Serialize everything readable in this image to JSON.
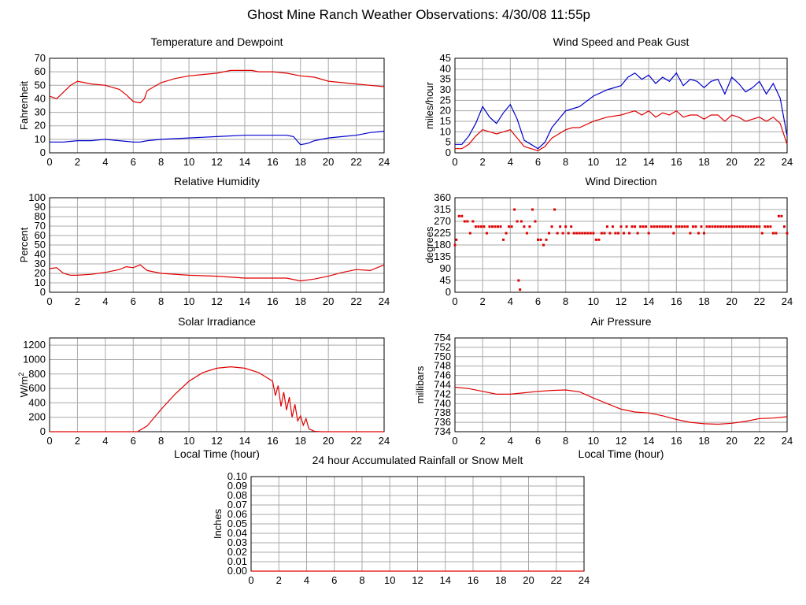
{
  "page_title": "Ghost Mine Ranch Weather Observations: 4/30/08 11:55p",
  "chart_data": [
    {
      "id": "temp",
      "type": "line",
      "title": "Temperature and Dewpoint",
      "ylabel": "Fahrenheit",
      "xlabel": "",
      "xlim": [
        0,
        24
      ],
      "ylim": [
        0,
        70
      ],
      "xticks": [
        0,
        2,
        4,
        6,
        8,
        10,
        12,
        14,
        16,
        18,
        20,
        22,
        24
      ],
      "yticks": [
        0,
        10,
        20,
        30,
        40,
        50,
        60,
        70
      ],
      "grid": true,
      "series": [
        {
          "color": "#e00000",
          "x": [
            0,
            0.5,
            1,
            1.5,
            2,
            3,
            4,
            5,
            5.5,
            6,
            6.5,
            6.8,
            7,
            8,
            9,
            10,
            11,
            12,
            13,
            14,
            14.5,
            15,
            16,
            17,
            18,
            19,
            20,
            21,
            22,
            23,
            24
          ],
          "y": [
            42,
            40,
            45,
            50,
            53,
            51,
            50,
            47,
            43,
            38,
            37,
            40,
            46,
            52,
            55,
            57,
            58,
            59,
            61,
            61,
            61,
            60,
            60,
            59,
            57,
            56,
            53,
            52,
            51,
            50,
            49
          ]
        },
        {
          "color": "#0000cc",
          "x": [
            0,
            1,
            2,
            3,
            4,
            5,
            6,
            6.5,
            7,
            8,
            10,
            12,
            14,
            16,
            17,
            17.5,
            18,
            18.5,
            19,
            20,
            21,
            22,
            23,
            24
          ],
          "y": [
            8,
            8,
            9,
            9,
            10,
            9,
            8,
            8,
            9,
            10,
            11,
            12,
            13,
            13,
            13,
            12,
            6,
            7,
            9,
            11,
            12,
            13,
            15,
            16
          ]
        }
      ]
    },
    {
      "id": "wind",
      "type": "line",
      "title": "Wind Speed and Peak Gust",
      "ylabel": "miles/hour",
      "xlabel": "",
      "xlim": [
        0,
        24
      ],
      "ylim": [
        0,
        45
      ],
      "xticks": [
        0,
        2,
        4,
        6,
        8,
        10,
        12,
        14,
        16,
        18,
        20,
        22,
        24
      ],
      "yticks": [
        0,
        5,
        10,
        15,
        20,
        25,
        30,
        35,
        40,
        45
      ],
      "grid": true,
      "series": [
        {
          "color": "#0000cc",
          "x": [
            0,
            0.5,
            1,
            1.5,
            2,
            2.5,
            3,
            3.5,
            4,
            4.5,
            5,
            5.5,
            6,
            6.5,
            7,
            7.5,
            8,
            8.5,
            9,
            10,
            11,
            12,
            12.5,
            13,
            13.5,
            14,
            14.5,
            15,
            15.5,
            16,
            16.5,
            17,
            17.5,
            18,
            18.5,
            19,
            19.5,
            20,
            20.5,
            21,
            21.5,
            22,
            22.5,
            23,
            23.5,
            24
          ],
          "y": [
            4,
            4,
            8,
            14,
            22,
            17,
            14,
            19,
            23,
            16,
            6,
            4,
            2,
            5,
            12,
            16,
            20,
            21,
            22,
            27,
            30,
            32,
            36,
            38,
            35,
            37,
            33,
            36,
            34,
            38,
            32,
            35,
            34,
            31,
            34,
            35,
            28,
            36,
            33,
            29,
            31,
            34,
            28,
            33,
            26,
            8
          ]
        },
        {
          "color": "#e00000",
          "x": [
            0,
            0.5,
            1,
            1.5,
            2,
            2.5,
            3,
            3.5,
            4,
            4.5,
            5,
            5.5,
            6,
            6.5,
            7,
            7.5,
            8,
            8.5,
            9,
            10,
            11,
            12,
            12.5,
            13,
            13.5,
            14,
            14.5,
            15,
            15.5,
            16,
            16.5,
            17,
            17.5,
            18,
            18.5,
            19,
            19.5,
            20,
            20.5,
            21,
            21.5,
            22,
            22.5,
            23,
            23.5,
            24
          ],
          "y": [
            2,
            2,
            4,
            8,
            11,
            10,
            9,
            10,
            11,
            7,
            3,
            2,
            1,
            3,
            7,
            9,
            11,
            12,
            12,
            15,
            17,
            18,
            19,
            20,
            18,
            20,
            17,
            19,
            18,
            20,
            17,
            18,
            18,
            16,
            18,
            18,
            15,
            18,
            17,
            15,
            16,
            17,
            15,
            17,
            14,
            4
          ]
        }
      ]
    },
    {
      "id": "rh",
      "type": "line",
      "title": "Relative Humidity",
      "ylabel": "Percent",
      "xlabel": "",
      "xlim": [
        0,
        24
      ],
      "ylim": [
        0,
        100
      ],
      "xticks": [
        0,
        2,
        4,
        6,
        8,
        10,
        12,
        14,
        16,
        18,
        20,
        22,
        24
      ],
      "yticks": [
        0,
        10,
        20,
        30,
        40,
        50,
        60,
        70,
        80,
        90,
        100
      ],
      "grid": true,
      "series": [
        {
          "color": "#e00000",
          "x": [
            0,
            0.5,
            1,
            1.5,
            2,
            3,
            4,
            5,
            5.5,
            6,
            6.5,
            7,
            8,
            10,
            12,
            14,
            16,
            17,
            18,
            19,
            20,
            21,
            22,
            23,
            24
          ],
          "y": [
            25,
            26,
            20,
            18,
            18,
            19,
            21,
            24,
            27,
            26,
            29,
            23,
            20,
            18,
            17,
            15,
            15,
            15,
            12,
            14,
            17,
            21,
            24,
            23,
            29
          ]
        }
      ]
    },
    {
      "id": "dir",
      "type": "scatter",
      "title": "Wind Direction",
      "ylabel": "degrees",
      "xlabel": "",
      "xlim": [
        0,
        24
      ],
      "ylim": [
        0,
        360
      ],
      "xticks": [
        0,
        2,
        4,
        6,
        8,
        10,
        12,
        14,
        16,
        18,
        20,
        22,
        24
      ],
      "yticks": [
        0,
        45,
        90,
        135,
        180,
        225,
        270,
        315,
        360
      ],
      "grid": true,
      "series": [
        {
          "color": "#e00000",
          "x": [
            0,
            0.1,
            0.3,
            0.5,
            0.7,
            0.9,
            1.1,
            1.3,
            1.5,
            1.7,
            1.9,
            2.1,
            2.3,
            2.5,
            2.7,
            2.9,
            3.1,
            3.3,
            3.5,
            3.7,
            3.9,
            4.1,
            4.3,
            4.5,
            4.6,
            4.7,
            4.8,
            5.0,
            5.2,
            5.4,
            5.6,
            5.8,
            6.0,
            6.2,
            6.4,
            6.6,
            6.8,
            7.0,
            7.2,
            7.4,
            7.6,
            7.8,
            8.0,
            8.2,
            8.4,
            8.6,
            8.8,
            9.0,
            9.2,
            9.4,
            9.6,
            9.8,
            10.0,
            10.2,
            10.4,
            10.6,
            10.8,
            11.0,
            11.2,
            11.4,
            11.6,
            11.8,
            12.0,
            12.2,
            12.4,
            12.6,
            12.8,
            13.0,
            13.2,
            13.4,
            13.6,
            13.8,
            14.0,
            14.2,
            14.4,
            14.6,
            14.8,
            15.0,
            15.2,
            15.4,
            15.6,
            15.8,
            16.0,
            16.2,
            16.4,
            16.6,
            16.8,
            17.0,
            17.2,
            17.4,
            17.6,
            17.8,
            18.0,
            18.2,
            18.4,
            18.6,
            18.8,
            19.0,
            19.2,
            19.4,
            19.6,
            19.8,
            20.0,
            20.2,
            20.4,
            20.6,
            20.8,
            21.0,
            21.2,
            21.4,
            21.6,
            21.8,
            22.0,
            22.2,
            22.4,
            22.6,
            22.8,
            23.0,
            23.2,
            23.4,
            23.6,
            23.8,
            24.0
          ],
          "y": [
            180,
            200,
            290,
            290,
            270,
            270,
            225,
            270,
            250,
            250,
            250,
            250,
            225,
            250,
            250,
            250,
            250,
            250,
            200,
            225,
            250,
            250,
            315,
            270,
            45,
            10,
            270,
            250,
            225,
            250,
            315,
            270,
            200,
            200,
            180,
            200,
            225,
            250,
            315,
            225,
            250,
            225,
            250,
            225,
            250,
            225,
            225,
            225,
            225,
            225,
            225,
            225,
            225,
            200,
            200,
            225,
            225,
            250,
            225,
            250,
            225,
            225,
            250,
            225,
            250,
            225,
            250,
            250,
            225,
            250,
            250,
            250,
            225,
            250,
            250,
            250,
            250,
            250,
            250,
            250,
            250,
            225,
            250,
            250,
            250,
            250,
            250,
            225,
            250,
            250,
            225,
            250,
            225,
            250,
            250,
            250,
            250,
            250,
            250,
            250,
            250,
            250,
            250,
            250,
            250,
            250,
            250,
            250,
            250,
            250,
            250,
            250,
            250,
            225,
            250,
            250,
            250,
            225,
            225,
            290,
            290,
            250,
            225
          ]
        }
      ]
    },
    {
      "id": "solar",
      "type": "line",
      "title": "Solar Irradiance",
      "ylabel": "W/m2",
      "xlabel": "Local Time (hour)",
      "xlim": [
        0,
        24
      ],
      "ylim": [
        0,
        1300
      ],
      "xticks": [
        0,
        2,
        4,
        6,
        8,
        10,
        12,
        14,
        16,
        18,
        20,
        22,
        24
      ],
      "yticks": [
        0,
        200,
        400,
        600,
        800,
        1000,
        1200
      ],
      "grid": true,
      "series": [
        {
          "color": "#e00000",
          "x": [
            0,
            6.3,
            7,
            8,
            9,
            10,
            11,
            12,
            13,
            14,
            15,
            15.5,
            16,
            16.2,
            16.4,
            16.6,
            16.8,
            17,
            17.2,
            17.4,
            17.6,
            17.8,
            18,
            18.2,
            18.4,
            18.6,
            19,
            19.5,
            20,
            24
          ],
          "y": [
            0,
            0,
            80,
            310,
            520,
            700,
            820,
            880,
            900,
            880,
            820,
            760,
            700,
            500,
            640,
            350,
            550,
            300,
            480,
            200,
            380,
            150,
            220,
            90,
            180,
            40,
            5,
            0,
            0,
            0
          ]
        }
      ]
    },
    {
      "id": "pressure",
      "type": "line",
      "title": "Air Pressure",
      "ylabel": "millibars",
      "xlabel": "Local Time (hour)",
      "xlim": [
        0,
        24
      ],
      "ylim": [
        734,
        754
      ],
      "xticks": [
        0,
        2,
        4,
        6,
        8,
        10,
        12,
        14,
        16,
        18,
        20,
        22,
        24
      ],
      "yticks": [
        734,
        736,
        738,
        740,
        742,
        744,
        746,
        748,
        750,
        752,
        754
      ],
      "grid": true,
      "series": [
        {
          "color": "#e00000",
          "x": [
            0,
            1,
            2,
            3,
            4,
            5,
            6,
            7,
            8,
            9,
            10,
            11,
            12,
            13,
            14,
            15,
            16,
            17,
            18,
            19,
            20,
            21,
            22,
            23,
            24
          ],
          "y": [
            743.5,
            743.2,
            742.6,
            742.0,
            742.0,
            742.3,
            742.6,
            742.8,
            742.9,
            742.5,
            741.2,
            740.0,
            738.8,
            738.2,
            738.0,
            737.4,
            736.6,
            736.0,
            735.7,
            735.6,
            735.8,
            736.2,
            736.8,
            736.9,
            737.2
          ]
        }
      ]
    },
    {
      "id": "rain",
      "type": "line",
      "title": "24 hour Accumulated Rainfall or Snow Melt",
      "ylabel": "Inches",
      "xlabel": "",
      "xlim": [
        0,
        24
      ],
      "ylim": [
        0,
        0.1
      ],
      "xticks": [
        0,
        2,
        4,
        6,
        8,
        10,
        12,
        14,
        16,
        18,
        20,
        22,
        24
      ],
      "yticks": [
        0.0,
        0.01,
        0.02,
        0.03,
        0.04,
        0.05,
        0.06,
        0.07,
        0.08,
        0.09,
        0.1
      ],
      "ytick_labels": [
        "0.00",
        "0.01",
        "0.02",
        "0.03",
        "0.04",
        "0.05",
        "0.06",
        "0.07",
        "0.08",
        "0.09",
        "0.10"
      ],
      "grid": true,
      "series": [
        {
          "color": "#e00000",
          "x": [
            0,
            24
          ],
          "y": [
            0,
            0
          ]
        }
      ]
    }
  ]
}
